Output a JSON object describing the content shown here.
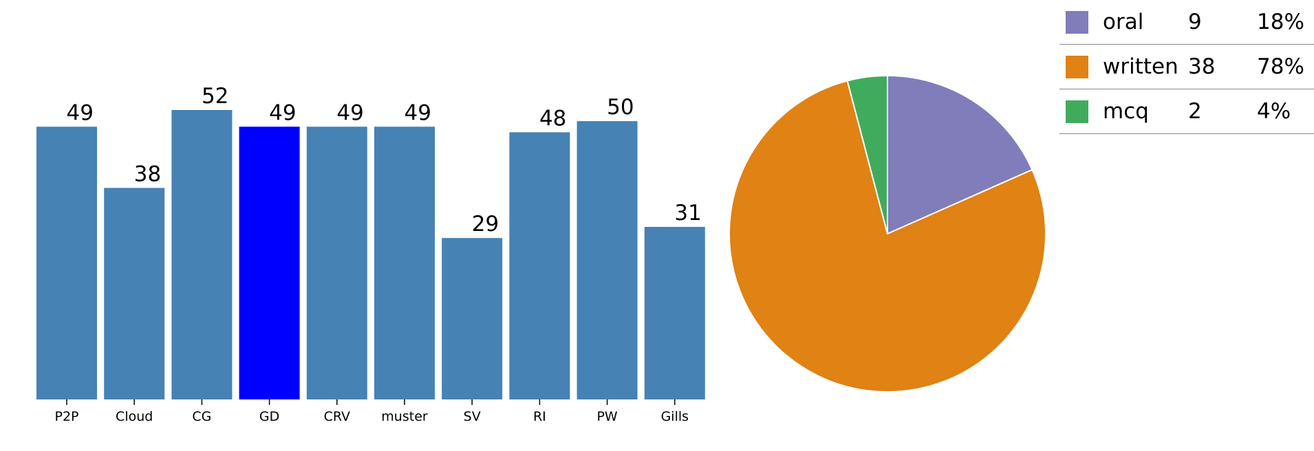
{
  "chart_data": [
    {
      "type": "bar",
      "categories": [
        "P2P",
        "Cloud",
        "CG",
        "GD",
        "CRV",
        "muster",
        "SV",
        "RI",
        "PW",
        "Gills"
      ],
      "values": [
        49,
        38,
        52,
        49,
        49,
        49,
        29,
        48,
        50,
        31
      ],
      "ylim": [
        0,
        52
      ],
      "bar_color": "#4682b4",
      "highlight_category": "GD",
      "highlight_color": "#0000ff",
      "grid": false
    },
    {
      "type": "pie",
      "slices": [
        {
          "label": "oral",
          "value": 9,
          "percent": "18%",
          "color": "#807dba"
        },
        {
          "label": "written",
          "value": 38,
          "percent": "78%",
          "color": "#e08214"
        },
        {
          "label": "mcq",
          "value": 2,
          "percent": "4%",
          "color": "#41ab5d"
        }
      ],
      "legend_position": "top-right"
    }
  ]
}
